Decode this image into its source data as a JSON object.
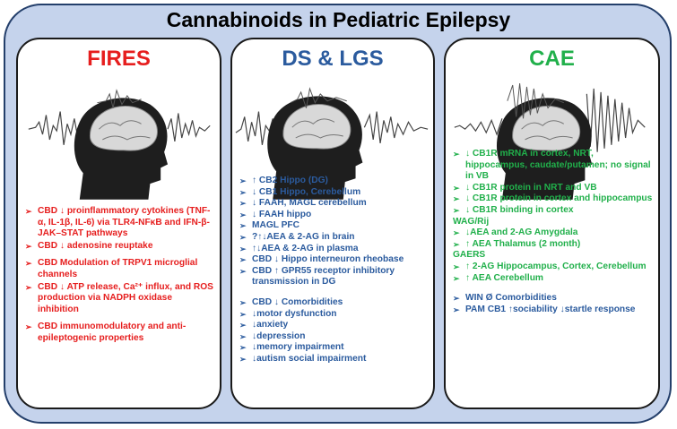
{
  "title": "Cannabinoids in Pediatric Epilepsy",
  "colors": {
    "fires": "#e61e1e",
    "ds_lgs": "#2b5b9e",
    "cae": "#21b04b",
    "background": "#c5d3ec"
  },
  "panels": {
    "fires": {
      "title": "FIRES",
      "items": [
        "CBD ↓ proinflammatory cytokines (TNF-α, IL-1β, IL-6) via TLR4-NFκB and IFN-β-JAK–STAT pathways",
        "CBD ↓ adenosine reuptake",
        "CBD Modulation of TRPV1 microglial channels",
        "CBD ↓ ATP release, Ca²⁺ influx, and ROS production via NADPH oxidase inhibition",
        "CBD immunomodulatory and anti-epileptogenic properties"
      ]
    },
    "ds_lgs": {
      "title": "DS & LGS",
      "items": [
        "↑ CB2 Hippo (DG)",
        "↓ CB1 Hippo, Cerebellum",
        "↓ FAAH, MAGL cerebellum",
        "↓ FAAH hippo",
        "MAGL PFC",
        "?↑↓AEA & 2-AG in brain",
        "↑↓AEA & 2-AG in plasma",
        "CBD ↓ Hippo interneuron rheobase",
        "CBD ↑ GPR55 receptor inhibitory transmission in DG"
      ],
      "comorbidity_items": [
        "CBD ↓ Comorbidities",
        "↓motor dysfunction",
        "↓anxiety",
        "↓depression",
        "↓memory impairment",
        "↓autism social impairment"
      ]
    },
    "cae": {
      "title": "CAE",
      "group_1": [
        "↓ CB1R mRNA in cortex, NRT, hippocampus, caudate/putamen; no signal in VB",
        "↓ CB1R protein in NRT and VB",
        "↓ CB1R protein in cortex and hippocampus",
        "↓ CB1R binding in cortex"
      ],
      "heading_wag": "WAG/Rij",
      "group_2": [
        "↓AEA and 2-AG Amygdala",
        "↑ AEA Thalamus (2 month)"
      ],
      "heading_gaers": "GAERS",
      "group_3": [
        "↑ 2-AG Hippocampus, Cortex, Cerebellum",
        "↑ AEA Cerebellum"
      ],
      "group_4": [
        "WIN Ø Comorbidities",
        "PAM CB1 ↑sociability ↓startle response"
      ]
    }
  }
}
